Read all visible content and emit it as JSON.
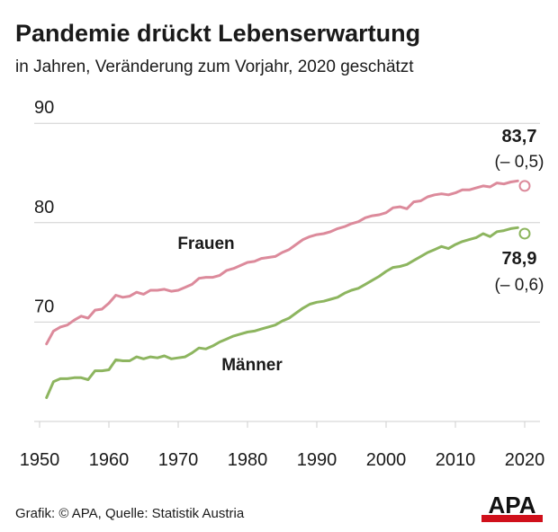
{
  "header": {
    "title": "Pandemie drückt Lebenserwartung",
    "subtitle": "in Jahren, Veränderung zum Vorjahr, 2020 geschätzt"
  },
  "footer": {
    "source": "Grafik: © APA, Quelle: Statistik Austria",
    "logo_text": "APA"
  },
  "colors": {
    "frauen": "#dc8a9b",
    "maenner": "#8db55f",
    "grid": "#cfcfcf",
    "text": "#1a1a1a",
    "logo_red": "#d0101b"
  },
  "chart_data": {
    "type": "line",
    "title": "Pandemie drückt Lebenserwartung",
    "subtitle": "in Jahren, Veränderung zum Vorjahr, 2020 geschätzt",
    "xlabel": "",
    "ylabel": "",
    "xlim": [
      1950,
      2020
    ],
    "ylim": [
      60,
      90
    ],
    "y_ticks": [
      90,
      80,
      70
    ],
    "y_tick_labels": [
      "90",
      "80",
      "70"
    ],
    "x_ticks": [
      1950,
      1960,
      1970,
      1980,
      1990,
      2000,
      2010,
      2020
    ],
    "x_tick_labels": [
      "1950",
      "1960",
      "1970",
      "1980",
      "1990",
      "2000",
      "2010",
      "2020"
    ],
    "grid": true,
    "series": [
      {
        "name": "Frauen",
        "x": [
          1951,
          1952,
          1953,
          1954,
          1955,
          1956,
          1957,
          1958,
          1959,
          1960,
          1961,
          1962,
          1963,
          1964,
          1965,
          1966,
          1967,
          1968,
          1969,
          1970,
          1971,
          1972,
          1973,
          1974,
          1975,
          1976,
          1977,
          1978,
          1979,
          1980,
          1981,
          1982,
          1983,
          1984,
          1985,
          1986,
          1987,
          1988,
          1989,
          1990,
          1991,
          1992,
          1993,
          1994,
          1995,
          1996,
          1997,
          1998,
          1999,
          2000,
          2001,
          2002,
          2003,
          2004,
          2005,
          2006,
          2007,
          2008,
          2009,
          2010,
          2011,
          2012,
          2013,
          2014,
          2015,
          2016,
          2017,
          2018,
          2019
        ],
        "values": [
          67.8,
          69.1,
          69.5,
          69.7,
          70.2,
          70.6,
          70.4,
          71.2,
          71.3,
          71.9,
          72.7,
          72.5,
          72.6,
          73.0,
          72.8,
          73.2,
          73.2,
          73.3,
          73.1,
          73.2,
          73.5,
          73.8,
          74.4,
          74.5,
          74.5,
          74.7,
          75.2,
          75.4,
          75.7,
          76.0,
          76.1,
          76.4,
          76.5,
          76.6,
          77.0,
          77.3,
          77.8,
          78.3,
          78.6,
          78.8,
          78.9,
          79.1,
          79.4,
          79.6,
          79.9,
          80.1,
          80.5,
          80.7,
          80.8,
          81.0,
          81.5,
          81.6,
          81.4,
          82.1,
          82.2,
          82.6,
          82.8,
          82.9,
          82.8,
          83.0,
          83.3,
          83.3,
          83.5,
          83.7,
          83.6,
          84.0,
          83.9,
          84.1,
          84.2
        ]
      },
      {
        "name": "Männer",
        "x": [
          1951,
          1952,
          1953,
          1954,
          1955,
          1956,
          1957,
          1958,
          1959,
          1960,
          1961,
          1962,
          1963,
          1964,
          1965,
          1966,
          1967,
          1968,
          1969,
          1970,
          1971,
          1972,
          1973,
          1974,
          1975,
          1976,
          1977,
          1978,
          1979,
          1980,
          1981,
          1982,
          1983,
          1984,
          1985,
          1986,
          1987,
          1988,
          1989,
          1990,
          1991,
          1992,
          1993,
          1994,
          1995,
          1996,
          1997,
          1998,
          1999,
          2000,
          2001,
          2002,
          2003,
          2004,
          2005,
          2006,
          2007,
          2008,
          2009,
          2010,
          2011,
          2012,
          2013,
          2014,
          2015,
          2016,
          2017,
          2018,
          2019
        ],
        "values": [
          62.4,
          64.0,
          64.3,
          64.3,
          64.4,
          64.4,
          64.2,
          65.1,
          65.1,
          65.2,
          66.2,
          66.1,
          66.1,
          66.5,
          66.3,
          66.5,
          66.4,
          66.6,
          66.3,
          66.4,
          66.5,
          66.9,
          67.4,
          67.3,
          67.6,
          68.0,
          68.3,
          68.6,
          68.8,
          69.0,
          69.1,
          69.3,
          69.5,
          69.7,
          70.1,
          70.4,
          70.9,
          71.4,
          71.8,
          72.0,
          72.1,
          72.3,
          72.5,
          72.9,
          73.2,
          73.4,
          73.8,
          74.2,
          74.6,
          75.1,
          75.5,
          75.6,
          75.8,
          76.2,
          76.6,
          77.0,
          77.3,
          77.6,
          77.4,
          77.8,
          78.1,
          78.3,
          78.5,
          78.9,
          78.6,
          79.1,
          79.2,
          79.4,
          79.5
        ]
      }
    ],
    "series_labels": [
      "Frauen",
      "Männer"
    ],
    "annotations": [
      {
        "series": "Frauen",
        "x": 2020,
        "value": 83.7,
        "label": "83,7",
        "change": "(– 0,5)"
      },
      {
        "series": "Männer",
        "x": 2020,
        "value": 78.9,
        "label": "78,9",
        "change": "(– 0,6)"
      }
    ]
  }
}
